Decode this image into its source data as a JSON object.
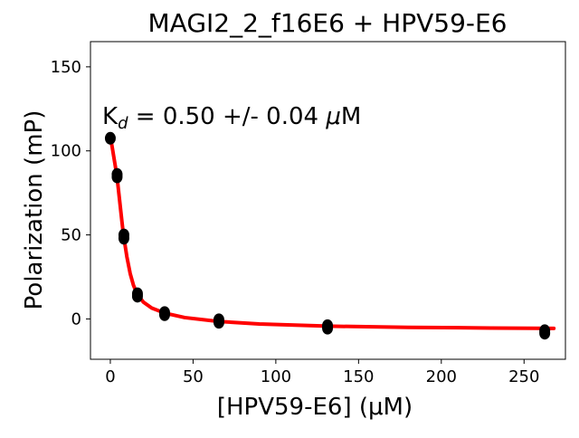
{
  "chart_data": {
    "type": "scatter",
    "title": "MAGI2_2_f16E6 + HPV59-E6",
    "xlabel": "[HPV59-E6] (μM)",
    "ylabel": "Polarization (mP)",
    "xlim": [
      -12,
      275
    ],
    "ylim": [
      -24,
      165
    ],
    "x_ticks": [
      0,
      50,
      100,
      150,
      200,
      250
    ],
    "y_ticks": [
      0,
      50,
      100,
      150
    ],
    "annotation": {
      "prefix": "K",
      "subscript": "d",
      "value_text": " = 0.50 +/- 0.04 ",
      "unit_symbol": "μ",
      "unit_rest": "M"
    },
    "points": [
      {
        "x": 0,
        "y": 107.5
      },
      {
        "x": 4.1,
        "y": 84.5
      },
      {
        "x": 4.1,
        "y": 86.0
      },
      {
        "x": 8.2,
        "y": 48.0
      },
      {
        "x": 8.2,
        "y": 50.0
      },
      {
        "x": 16.4,
        "y": 13.5
      },
      {
        "x": 16.4,
        "y": 15.0
      },
      {
        "x": 32.8,
        "y": 2.5
      },
      {
        "x": 32.8,
        "y": 3.8
      },
      {
        "x": 65.6,
        "y": -2.0
      },
      {
        "x": 65.6,
        "y": -0.5
      },
      {
        "x": 131.25,
        "y": -5.5
      },
      {
        "x": 131.25,
        "y": -4.0
      },
      {
        "x": 262.5,
        "y": -8.5
      },
      {
        "x": 262.5,
        "y": -7.0
      }
    ],
    "fit_curve": [
      {
        "x": 0,
        "y": 107.5
      },
      {
        "x": 1,
        "y": 103
      },
      {
        "x": 2,
        "y": 97
      },
      {
        "x": 3,
        "y": 91
      },
      {
        "x": 4,
        "y": 85
      },
      {
        "x": 5,
        "y": 76
      },
      {
        "x": 6,
        "y": 67
      },
      {
        "x": 7,
        "y": 58
      },
      {
        "x": 8,
        "y": 49.5
      },
      {
        "x": 10,
        "y": 37
      },
      {
        "x": 12,
        "y": 27
      },
      {
        "x": 14,
        "y": 20
      },
      {
        "x": 16.4,
        "y": 14.5
      },
      {
        "x": 20,
        "y": 10
      },
      {
        "x": 25,
        "y": 6.5
      },
      {
        "x": 32.8,
        "y": 3.5
      },
      {
        "x": 45,
        "y": 0.8
      },
      {
        "x": 65.6,
        "y": -1.5
      },
      {
        "x": 90,
        "y": -3.0
      },
      {
        "x": 131.25,
        "y": -4.3
      },
      {
        "x": 180,
        "y": -5.0
      },
      {
        "x": 230,
        "y": -5.4
      },
      {
        "x": 268,
        "y": -5.6
      }
    ],
    "colors": {
      "points": "#000000",
      "fit": "#ff0000",
      "axes": "#000000"
    },
    "grid": false,
    "legend": "none"
  }
}
